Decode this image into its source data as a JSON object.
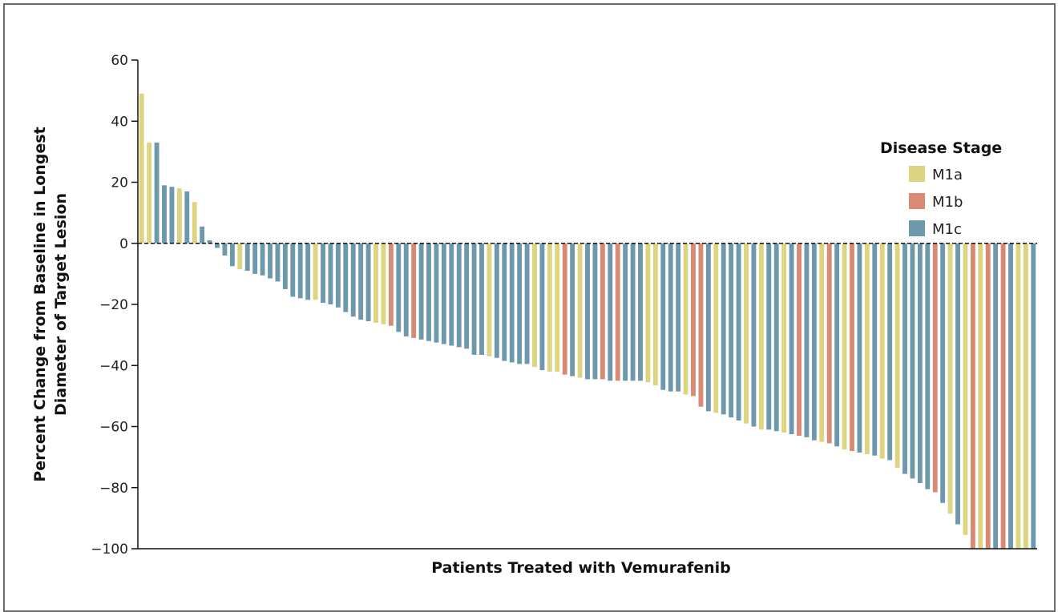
{
  "chart_data": {
    "type": "bar",
    "xlabel": "Patients Treated with Vemurafenib",
    "ylabel_line1": "Percent Change from Baseline in Longest",
    "ylabel_line2": "Diameter of Target Lesion",
    "ylim": [
      -100,
      60
    ],
    "yticks": [
      60,
      40,
      20,
      0,
      -20,
      -40,
      -60,
      -80,
      -100
    ],
    "ytick_labels": [
      "60",
      "40",
      "20",
      "0",
      "−20",
      "−40",
      "−60",
      "−80",
      "−100"
    ],
    "grid": false,
    "zero_line": "dashed",
    "legend_placement": "right",
    "legend": {
      "title": "Disease Stage",
      "entries": [
        {
          "label": "M1a",
          "color": "#dcd47f"
        },
        {
          "label": "M1b",
          "color": "#d98a74"
        },
        {
          "label": "M1c",
          "color": "#6e98ab"
        }
      ]
    },
    "bars": [
      {
        "stage": "M1a",
        "value": 49
      },
      {
        "stage": "M1a",
        "value": 33
      },
      {
        "stage": "M1c",
        "value": 33
      },
      {
        "stage": "M1c",
        "value": 19
      },
      {
        "stage": "M1c",
        "value": 18.5
      },
      {
        "stage": "M1a",
        "value": 18
      },
      {
        "stage": "M1c",
        "value": 17
      },
      {
        "stage": "M1a",
        "value": 13.5
      },
      {
        "stage": "M1c",
        "value": 5.5
      },
      {
        "stage": "M1c",
        "value": 1
      },
      {
        "stage": "M1c",
        "value": -1.5
      },
      {
        "stage": "M1c",
        "value": -4
      },
      {
        "stage": "M1c",
        "value": -7.5
      },
      {
        "stage": "M1a",
        "value": -8.5
      },
      {
        "stage": "M1c",
        "value": -9
      },
      {
        "stage": "M1c",
        "value": -10
      },
      {
        "stage": "M1c",
        "value": -10.5
      },
      {
        "stage": "M1c",
        "value": -11.5
      },
      {
        "stage": "M1c",
        "value": -12.5
      },
      {
        "stage": "M1c",
        "value": -15
      },
      {
        "stage": "M1c",
        "value": -17.5
      },
      {
        "stage": "M1c",
        "value": -18
      },
      {
        "stage": "M1c",
        "value": -18.5
      },
      {
        "stage": "M1a",
        "value": -18.5
      },
      {
        "stage": "M1c",
        "value": -19.5
      },
      {
        "stage": "M1c",
        "value": -20
      },
      {
        "stage": "M1c",
        "value": -21
      },
      {
        "stage": "M1c",
        "value": -22.5
      },
      {
        "stage": "M1c",
        "value": -24
      },
      {
        "stage": "M1c",
        "value": -25
      },
      {
        "stage": "M1c",
        "value": -25.5
      },
      {
        "stage": "M1a",
        "value": -26
      },
      {
        "stage": "M1a",
        "value": -26.5
      },
      {
        "stage": "M1b",
        "value": -27
      },
      {
        "stage": "M1c",
        "value": -29
      },
      {
        "stage": "M1c",
        "value": -30.5
      },
      {
        "stage": "M1b",
        "value": -31
      },
      {
        "stage": "M1c",
        "value": -31.5
      },
      {
        "stage": "M1c",
        "value": -32
      },
      {
        "stage": "M1c",
        "value": -32.5
      },
      {
        "stage": "M1c",
        "value": -33
      },
      {
        "stage": "M1c",
        "value": -33.5
      },
      {
        "stage": "M1c",
        "value": -34
      },
      {
        "stage": "M1c",
        "value": -34.5
      },
      {
        "stage": "M1c",
        "value": -36.5
      },
      {
        "stage": "M1c",
        "value": -36.5
      },
      {
        "stage": "M1a",
        "value": -37
      },
      {
        "stage": "M1c",
        "value": -37.5
      },
      {
        "stage": "M1c",
        "value": -38.5
      },
      {
        "stage": "M1c",
        "value": -39
      },
      {
        "stage": "M1c",
        "value": -39.5
      },
      {
        "stage": "M1c",
        "value": -39.5
      },
      {
        "stage": "M1a",
        "value": -40.5
      },
      {
        "stage": "M1c",
        "value": -41.5
      },
      {
        "stage": "M1a",
        "value": -42
      },
      {
        "stage": "M1a",
        "value": -42
      },
      {
        "stage": "M1b",
        "value": -43
      },
      {
        "stage": "M1c",
        "value": -43.5
      },
      {
        "stage": "M1a",
        "value": -44
      },
      {
        "stage": "M1c",
        "value": -44.5
      },
      {
        "stage": "M1c",
        "value": -44.5
      },
      {
        "stage": "M1b",
        "value": -44.5
      },
      {
        "stage": "M1c",
        "value": -45
      },
      {
        "stage": "M1b",
        "value": -45
      },
      {
        "stage": "M1c",
        "value": -45
      },
      {
        "stage": "M1c",
        "value": -45
      },
      {
        "stage": "M1c",
        "value": -45
      },
      {
        "stage": "M1a",
        "value": -45.5
      },
      {
        "stage": "M1a",
        "value": -46.5
      },
      {
        "stage": "M1c",
        "value": -48
      },
      {
        "stage": "M1c",
        "value": -48.5
      },
      {
        "stage": "M1c",
        "value": -48.5
      },
      {
        "stage": "M1a",
        "value": -49.5
      },
      {
        "stage": "M1b",
        "value": -50
      },
      {
        "stage": "M1b",
        "value": -53.5
      },
      {
        "stage": "M1c",
        "value": -55
      },
      {
        "stage": "M1a",
        "value": -55.5
      },
      {
        "stage": "M1c",
        "value": -56
      },
      {
        "stage": "M1c",
        "value": -57
      },
      {
        "stage": "M1c",
        "value": -58
      },
      {
        "stage": "M1a",
        "value": -59
      },
      {
        "stage": "M1c",
        "value": -60
      },
      {
        "stage": "M1a",
        "value": -61
      },
      {
        "stage": "M1c",
        "value": -61
      },
      {
        "stage": "M1c",
        "value": -61.5
      },
      {
        "stage": "M1a",
        "value": -62
      },
      {
        "stage": "M1c",
        "value": -62.5
      },
      {
        "stage": "M1b",
        "value": -63
      },
      {
        "stage": "M1c",
        "value": -63.5
      },
      {
        "stage": "M1c",
        "value": -64.5
      },
      {
        "stage": "M1a",
        "value": -65
      },
      {
        "stage": "M1b",
        "value": -65.5
      },
      {
        "stage": "M1c",
        "value": -66.5
      },
      {
        "stage": "M1a",
        "value": -67.5
      },
      {
        "stage": "M1b",
        "value": -68
      },
      {
        "stage": "M1c",
        "value": -68.5
      },
      {
        "stage": "M1a",
        "value": -69
      },
      {
        "stage": "M1c",
        "value": -69.5
      },
      {
        "stage": "M1a",
        "value": -70.5
      },
      {
        "stage": "M1c",
        "value": -71
      },
      {
        "stage": "M1a",
        "value": -73.5
      },
      {
        "stage": "M1c",
        "value": -75.5
      },
      {
        "stage": "M1c",
        "value": -77
      },
      {
        "stage": "M1c",
        "value": -78.5
      },
      {
        "stage": "M1c",
        "value": -80.5
      },
      {
        "stage": "M1b",
        "value": -81.5
      },
      {
        "stage": "M1c",
        "value": -85
      },
      {
        "stage": "M1a",
        "value": -88.5
      },
      {
        "stage": "M1c",
        "value": -92
      },
      {
        "stage": "M1a",
        "value": -95.5
      },
      {
        "stage": "M1b",
        "value": -100
      },
      {
        "stage": "M1a",
        "value": -100
      },
      {
        "stage": "M1b",
        "value": -100
      },
      {
        "stage": "M1c",
        "value": -100
      },
      {
        "stage": "M1b",
        "value": -100
      },
      {
        "stage": "M1c",
        "value": -100
      },
      {
        "stage": "M1a",
        "value": -100
      },
      {
        "stage": "M1a",
        "value": -100
      },
      {
        "stage": "M1c",
        "value": -100
      }
    ]
  }
}
